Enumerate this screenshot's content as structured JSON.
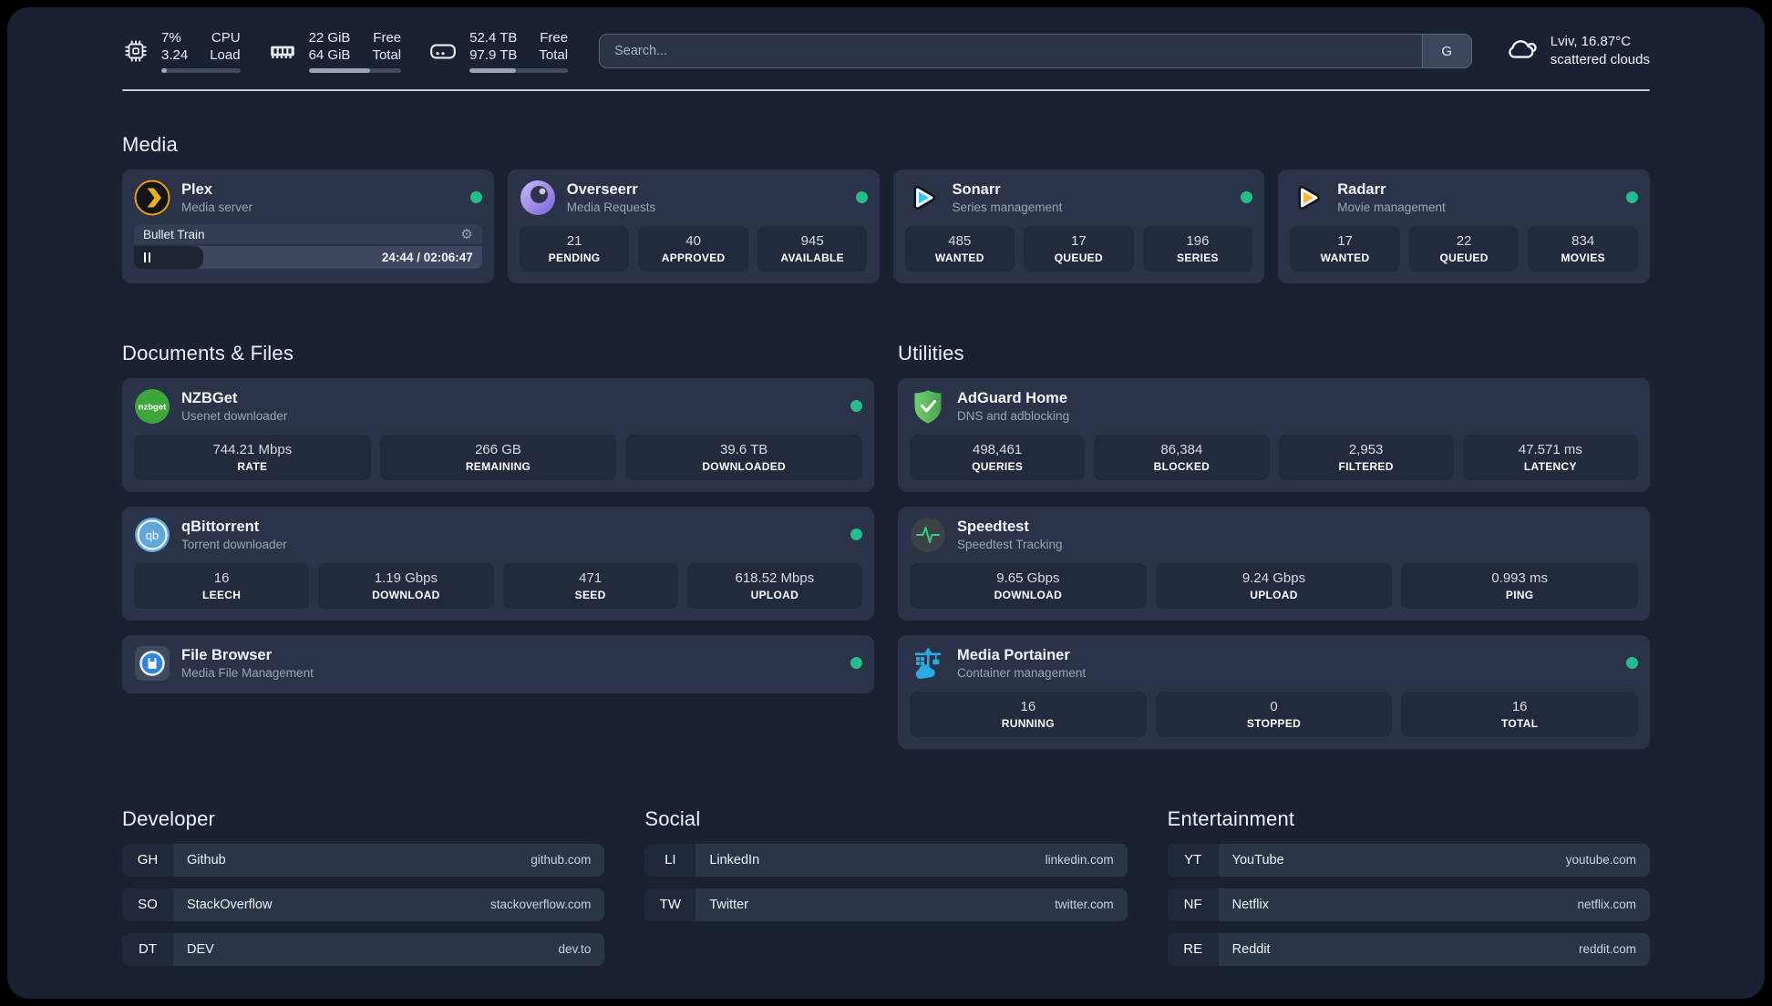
{
  "header": {
    "cpu": {
      "values": [
        "7%",
        "3.24"
      ],
      "labels": [
        "CPU",
        "Load"
      ],
      "progress": 7
    },
    "memory": {
      "values": [
        "22 GiB",
        "64 GiB"
      ],
      "labels": [
        "Free",
        "Total"
      ],
      "progress": 66
    },
    "disk": {
      "values": [
        "52.4 TB",
        "97.9 TB"
      ],
      "labels": [
        "Free",
        "Total"
      ],
      "progress": 47
    },
    "search": {
      "placeholder": "Search...",
      "button_label": "G"
    },
    "weather": {
      "summary": "Lviv, 16.87°C",
      "condition": "scattered clouds"
    }
  },
  "media": {
    "title": "Media",
    "plex": {
      "name": "Plex",
      "description": "Media server",
      "now_playing": {
        "title": "Bullet Train",
        "time": "24:44 / 02:06:47",
        "progress_percent": 20
      }
    },
    "overseerr": {
      "name": "Overseerr",
      "description": "Media Requests",
      "stats": [
        {
          "value": "21",
          "label": "PENDING"
        },
        {
          "value": "40",
          "label": "APPROVED"
        },
        {
          "value": "945",
          "label": "AVAILABLE"
        }
      ]
    },
    "sonarr": {
      "name": "Sonarr",
      "description": "Series management",
      "stats": [
        {
          "value": "485",
          "label": "WANTED"
        },
        {
          "value": "17",
          "label": "QUEUED"
        },
        {
          "value": "196",
          "label": "SERIES"
        }
      ]
    },
    "radarr": {
      "name": "Radarr",
      "description": "Movie management",
      "stats": [
        {
          "value": "17",
          "label": "WANTED"
        },
        {
          "value": "22",
          "label": "QUEUED"
        },
        {
          "value": "834",
          "label": "MOVIES"
        }
      ]
    }
  },
  "documents": {
    "title": "Documents & Files",
    "nzbget": {
      "name": "NZBGet",
      "description": "Usenet downloader",
      "stats": [
        {
          "value": "744.21 Mbps",
          "label": "RATE"
        },
        {
          "value": "266 GB",
          "label": "REMAINING"
        },
        {
          "value": "39.6 TB",
          "label": "DOWNLOADED"
        }
      ]
    },
    "qbittorrent": {
      "name": "qBittorrent",
      "description": "Torrent downloader",
      "stats": [
        {
          "value": "16",
          "label": "LEECH"
        },
        {
          "value": "1.19 Gbps",
          "label": "DOWNLOAD"
        },
        {
          "value": "471",
          "label": "SEED"
        },
        {
          "value": "618.52 Mbps",
          "label": "UPLOAD"
        }
      ]
    },
    "filebrowser": {
      "name": "File Browser",
      "description": "Media File Management"
    }
  },
  "utilities": {
    "title": "Utilities",
    "adguard": {
      "name": "AdGuard Home",
      "description": "DNS and adblocking",
      "stats": [
        {
          "value": "498,461",
          "label": "QUERIES"
        },
        {
          "value": "86,384",
          "label": "BLOCKED"
        },
        {
          "value": "2,953",
          "label": "FILTERED"
        },
        {
          "value": "47.571 ms",
          "label": "LATENCY"
        }
      ]
    },
    "speedtest": {
      "name": "Speedtest",
      "description": "Speedtest Tracking",
      "stats": [
        {
          "value": "9.65 Gbps",
          "label": "DOWNLOAD"
        },
        {
          "value": "9.24 Gbps",
          "label": "UPLOAD"
        },
        {
          "value": "0.993 ms",
          "label": "PING"
        }
      ]
    },
    "portainer": {
      "name": "Media Portainer",
      "description": "Container management",
      "stats": [
        {
          "value": "16",
          "label": "RUNNING"
        },
        {
          "value": "0",
          "label": "STOPPED"
        },
        {
          "value": "16",
          "label": "TOTAL"
        }
      ]
    }
  },
  "bookmarks": {
    "developer": {
      "title": "Developer",
      "items": [
        {
          "abbr": "GH",
          "name": "Github",
          "url": "github.com"
        },
        {
          "abbr": "SO",
          "name": "StackOverflow",
          "url": "stackoverflow.com"
        },
        {
          "abbr": "DT",
          "name": "DEV",
          "url": "dev.to"
        }
      ]
    },
    "social": {
      "title": "Social",
      "items": [
        {
          "abbr": "LI",
          "name": "LinkedIn",
          "url": "linkedin.com"
        },
        {
          "abbr": "TW",
          "name": "Twitter",
          "url": "twitter.com"
        }
      ]
    },
    "entertainment": {
      "title": "Entertainment",
      "items": [
        {
          "abbr": "YT",
          "name": "YouTube",
          "url": "youtube.com"
        },
        {
          "abbr": "NF",
          "name": "Netflix",
          "url": "netflix.com"
        },
        {
          "abbr": "RE",
          "name": "Reddit",
          "url": "reddit.com"
        }
      ]
    }
  },
  "colors": {
    "accent_green": "#22bd8b",
    "background": "#1a2133",
    "card": "#2a3347"
  }
}
